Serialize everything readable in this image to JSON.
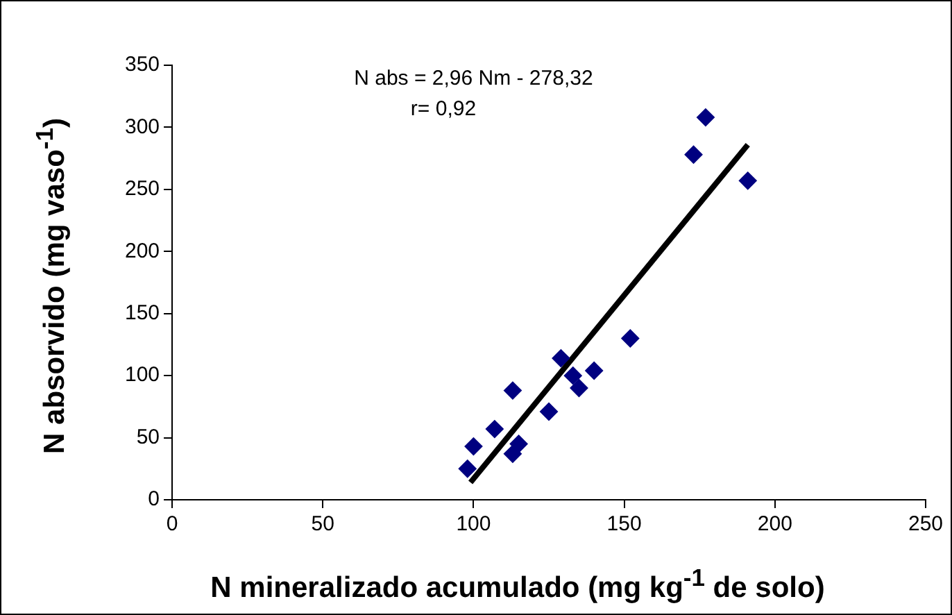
{
  "chart_data": {
    "type": "scatter",
    "xlabel": "N mineralizado acumulado (mg kg$^{-1}$ de solo)",
    "ylabel": "N absorvido (mg vaso$^{-1}$)",
    "annotations": [
      "N abs = 2,96 Nm - 278,32",
      "r= 0,92"
    ],
    "series": [
      {
        "color": "#000080",
        "x": [
          98,
          100,
          107,
          113,
          113,
          115,
          125,
          129,
          133,
          135,
          140,
          152,
          173,
          177,
          191
        ],
        "values": [
          25,
          43,
          57,
          88,
          37,
          45,
          71,
          114,
          100,
          90,
          104,
          130,
          278,
          308,
          257
        ],
        "marker": "diamond"
      },
      {
        "type": "line",
        "color": "#000000",
        "x": [
          99,
          191
        ],
        "values": [
          14,
          286
        ],
        "marker": "none"
      }
    ],
    "xlim": [
      0,
      250
    ],
    "xticks": [
      0,
      50,
      100,
      150,
      200,
      250
    ],
    "ylim": [
      0,
      350
    ],
    "yticks": [
      0,
      50,
      100,
      150,
      200,
      250,
      300,
      350
    ],
    "grid": false,
    "legend": false
  }
}
